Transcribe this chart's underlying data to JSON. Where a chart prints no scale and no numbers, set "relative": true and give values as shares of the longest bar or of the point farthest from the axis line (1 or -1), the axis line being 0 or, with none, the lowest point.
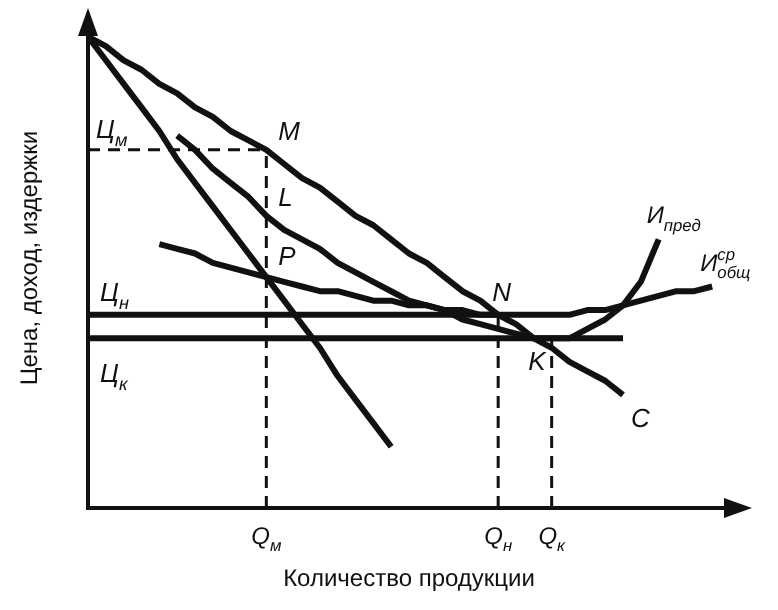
{
  "chart_data": {
    "type": "line",
    "relative": true,
    "xlabel": "Количество продукции",
    "ylabel": "Цена, доход, издержки",
    "grid": false,
    "legend": false,
    "marker": "none",
    "line_style": "solid",
    "categories": [
      null,
      null,
      null,
      null,
      null,
      null,
      null,
      null,
      null,
      null,
      "Q$_{м}$",
      null,
      null,
      null,
      null,
      null,
      null,
      null,
      null,
      null,
      null,
      null,
      null,
      "Q$_{н}$",
      null,
      null,
      "Q$_{к}$",
      null,
      null,
      null,
      null,
      null,
      null,
      null,
      null,
      null,
      null
    ],
    "series": [
      {
        "name": "C",
        "color": "#111111",
        "values": [
          1,
          0.98,
          0.95,
          0.93,
          0.9,
          0.88,
          0.85,
          0.83,
          0.8,
          0.78,
          0.76,
          0.73,
          0.7,
          0.68,
          0.65,
          0.62,
          0.6,
          0.57,
          0.54,
          0.52,
          0.49,
          0.46,
          0.44,
          0.41,
          0.39,
          0.36,
          0.34,
          0.31,
          0.29,
          0.27,
          0.24,
          null,
          null,
          null,
          null,
          null,
          null
        ]
      },
      {
        "color": "#111111",
        "values": [
          1,
          0.95,
          0.9,
          0.85,
          0.8,
          0.74,
          0.69,
          0.64,
          0.59,
          0.54,
          0.49,
          0.44,
          0.39,
          0.34,
          0.28,
          0.23,
          0.18,
          0.13,
          null,
          null,
          null,
          null,
          null,
          null,
          null,
          null,
          null,
          null,
          null,
          null,
          null,
          null,
          null,
          null,
          null,
          null,
          null
        ]
      },
      {
        "name": "И$_{пред}$",
        "color": "#111111",
        "values": [
          null,
          null,
          null,
          null,
          null,
          0.79,
          0.76,
          0.72,
          0.69,
          0.66,
          0.62,
          0.59,
          0.57,
          0.55,
          0.52,
          0.5,
          0.48,
          0.46,
          0.44,
          0.43,
          0.42,
          0.4,
          0.39,
          0.38,
          0.37,
          0.36,
          0.36,
          0.36,
          0.38,
          0.4,
          0.43,
          0.48,
          0.57,
          null,
          null,
          null,
          null
        ]
      },
      {
        "name": "И$^{ср}$$_{общ}$",
        "color": "#111111",
        "values": [
          null,
          null,
          null,
          null,
          0.56,
          0.55,
          0.54,
          0.52,
          0.51,
          0.5,
          0.49,
          0.48,
          0.47,
          0.46,
          0.46,
          0.45,
          0.44,
          0.44,
          0.43,
          0.43,
          0.42,
          0.42,
          0.41,
          0.41,
          0.41,
          0.41,
          0.41,
          0.41,
          0.42,
          0.42,
          0.43,
          0.44,
          0.45,
          0.46,
          0.46,
          0.47,
          null
        ]
      },
      {
        "color": "#111111",
        "values": [
          0.41,
          0.41,
          0.41,
          0.41,
          0.41,
          0.41,
          0.41,
          0.41,
          0.41,
          0.41,
          0.41,
          0.41,
          0.41,
          0.41,
          0.41,
          0.41,
          0.41,
          0.41,
          0.41,
          0.41,
          0.41,
          0.41,
          0.41,
          0.41,
          null,
          null,
          null,
          null,
          null,
          null,
          null,
          null,
          null,
          null,
          null,
          null,
          null
        ]
      },
      {
        "color": "#111111",
        "values": [
          0.36,
          0.36,
          0.36,
          0.36,
          0.36,
          0.36,
          0.36,
          0.36,
          0.36,
          0.36,
          0.36,
          0.36,
          0.36,
          0.36,
          0.36,
          0.36,
          0.36,
          0.36,
          0.36,
          0.36,
          0.36,
          0.36,
          0.36,
          0.36,
          0.36,
          0.36,
          0.36,
          0.36,
          0.36,
          0.36,
          0.36,
          null,
          null,
          null,
          null,
          null,
          null
        ]
      }
    ],
    "ref_lines": [
      {
        "axis": "y",
        "value": 0.76,
        "label": "Ц$_{м}$",
        "line_style": "dashed"
      },
      {
        "axis": "x",
        "value": "Q$_{м}$",
        "line_style": "dashed"
      },
      {
        "axis": "x",
        "value": "Q$_{н}$",
        "line_style": "dashed"
      },
      {
        "axis": "x",
        "value": "Q$_{к}$",
        "line_style": "dashed"
      }
    ],
    "annotations": [
      {
        "text": "M",
        "x": "Q$_{м}$",
        "y": 0.76
      },
      {
        "text": "L",
        "x": "Q$_{м}$",
        "y": 0.62
      },
      {
        "text": "P",
        "x": "Q$_{м}$",
        "y": 0.49
      },
      {
        "text": "N",
        "x": "Q$_{н}$",
        "y": 0.41
      },
      {
        "text": "K",
        "x": "Q$_{к}$",
        "y": 0.36
      },
      {
        "text": "Ц$_{н}$",
        "y": 0.41
      },
      {
        "text": "Ц$_{к}$",
        "y": 0.36
      }
    ]
  }
}
